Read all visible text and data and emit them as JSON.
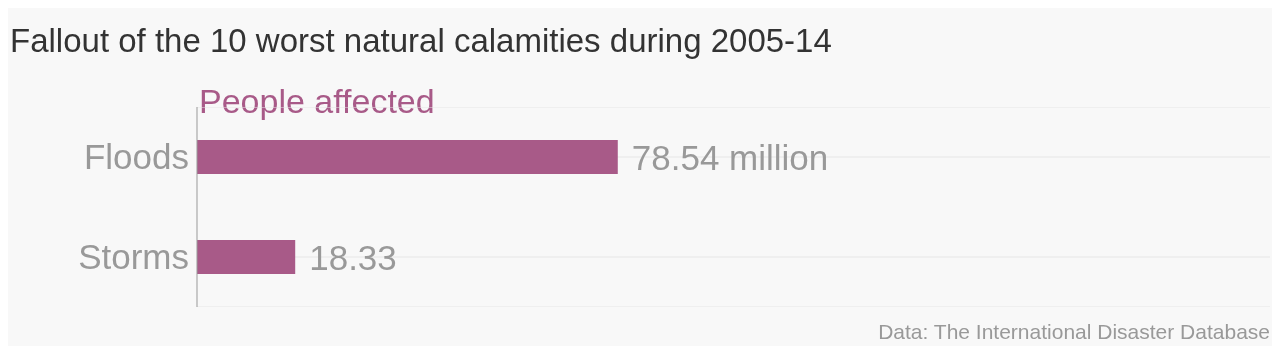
{
  "chart_data": {
    "type": "bar",
    "orientation": "horizontal",
    "title": "Fallout of the 10 worst natural calamities during 2005-14",
    "categories": [
      "Floods",
      "Storms"
    ],
    "series": [
      {
        "name": "People affected",
        "color": "#a85a88",
        "values": [
          78.54,
          18.33
        ],
        "value_labels": [
          "78.54 million",
          "18.33"
        ]
      }
    ],
    "grid": "y",
    "legend": false,
    "annotations": [
      "Data: The International Disaster Database"
    ]
  }
}
